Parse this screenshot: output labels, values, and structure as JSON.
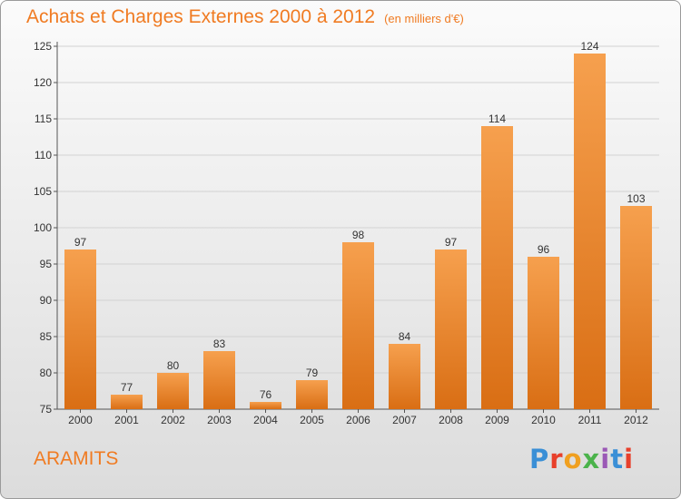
{
  "header": {
    "title": "Achats et Charges Externes 2000 à 2012",
    "unit": "(en milliers d'€)"
  },
  "footer": {
    "commune": "ARAMITS",
    "brand": "Proxiti"
  },
  "chart_data": {
    "type": "bar",
    "title": "Achats et Charges Externes 2000 à 2012",
    "subtitle": "(en milliers d'€)",
    "categories": [
      "2000",
      "2001",
      "2002",
      "2003",
      "2004",
      "2005",
      "2006",
      "2007",
      "2008",
      "2009",
      "2010",
      "2011",
      "2012"
    ],
    "values": [
      97,
      77,
      80,
      83,
      76,
      79,
      98,
      84,
      97,
      114,
      96,
      124,
      103
    ],
    "ylim": [
      75,
      125
    ],
    "yticks": [
      75,
      80,
      85,
      90,
      95,
      100,
      105,
      110,
      115,
      120,
      125
    ],
    "xlabel": "",
    "ylabel": "",
    "grid": true,
    "bar_color": "#f28c2c"
  }
}
